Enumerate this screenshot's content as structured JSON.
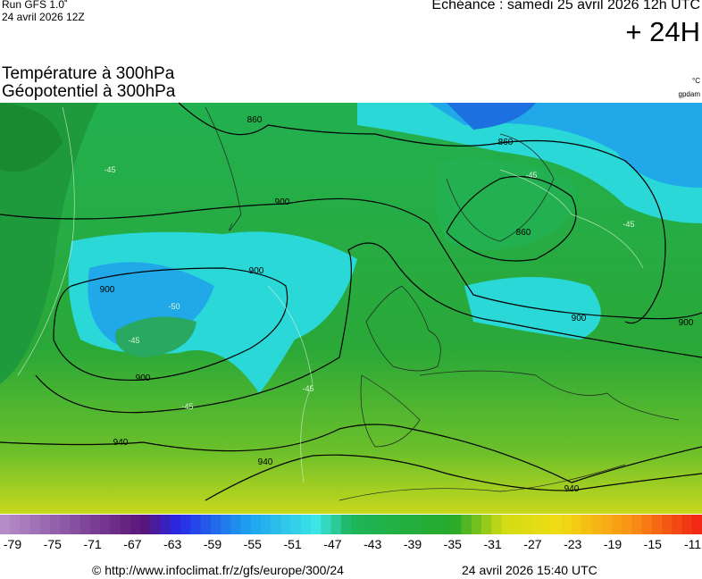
{
  "header": {
    "run": "Run GFS 1.0˚",
    "run_date": "24 avril 2026 12Z",
    "echeance": "Echéance : samedi 25 avril 2026 12h UTC",
    "lead": "+ 24H"
  },
  "titles": {
    "line1": "Température à 300hPa",
    "line2": "Géopotentiel à 300hPa",
    "unit1": "°C",
    "unit2": "gpdam"
  },
  "map": {
    "geopotential_labels": [
      "860",
      "860",
      "860",
      "900",
      "900",
      "900",
      "900",
      "900",
      "900",
      "940",
      "940",
      "940"
    ],
    "temperature_labels": [
      "-45",
      "-45",
      "-45",
      "-45",
      "-45",
      "-45",
      "-50"
    ]
  },
  "colorbar": {
    "labels": [
      -79,
      -75,
      -71,
      -67,
      -63,
      -59,
      -55,
      -51,
      -47,
      -43,
      -39,
      -35,
      -31,
      -27,
      -23,
      -19,
      -15,
      -11
    ]
  },
  "footer": {
    "url": "© http://www.infoclimat.fr/z/gfs/europe/300/24",
    "date": "24 avril 2026 15:40 UTC"
  }
}
